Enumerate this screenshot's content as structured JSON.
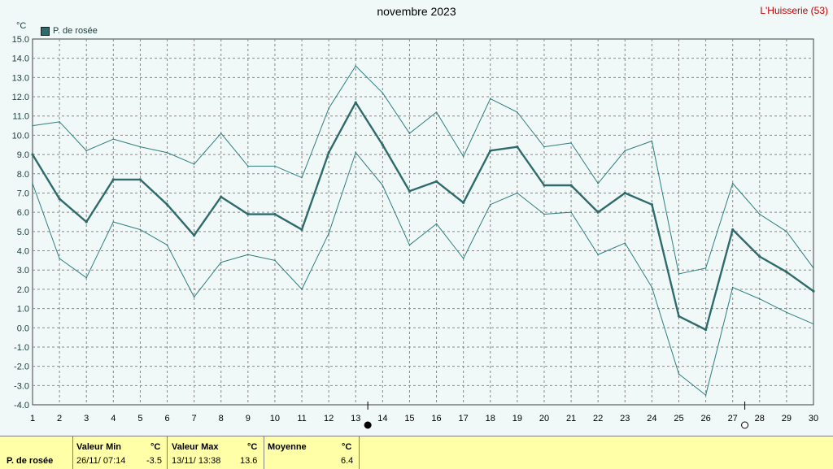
{
  "title": "novembre 2023",
  "station": "L'Huisserie (53)",
  "unit_label": "°C",
  "legend_label": "P. de rosée",
  "colors": {
    "main": "#2f6b6b",
    "envelope": "#2f7f7f",
    "grid": "#888888",
    "plot_bg": "#f0f8f8",
    "stats_bg": "#ffffa8",
    "station": "#c00000"
  },
  "chart_data": {
    "type": "line",
    "x": [
      1,
      2,
      3,
      4,
      5,
      6,
      7,
      8,
      9,
      10,
      11,
      12,
      13,
      14,
      15,
      16,
      17,
      18,
      19,
      20,
      21,
      22,
      23,
      24,
      25,
      26,
      27,
      28,
      29,
      30
    ],
    "xlim": [
      1,
      30
    ],
    "ylim": [
      -4,
      15
    ],
    "yticks": [
      "15.0",
      "14.0",
      "13.0",
      "12.0",
      "11.0",
      "10.0",
      "9.0",
      "8.0",
      "7.0",
      "6.0",
      "5.0",
      "4.0",
      "3.0",
      "2.0",
      "1.0",
      "0.0",
      "-1.0",
      "-2.0",
      "-3.0",
      "-4.0"
    ],
    "grid": true,
    "legend": "top-left",
    "series": [
      {
        "name": "P. de rosée",
        "role": "mean",
        "values": [
          9.0,
          6.7,
          5.5,
          7.7,
          7.7,
          6.4,
          4.8,
          6.8,
          5.9,
          5.9,
          5.1,
          9.1,
          11.7,
          9.5,
          7.1,
          7.6,
          6.5,
          9.2,
          9.4,
          7.4,
          7.4,
          6.0,
          7.0,
          6.4,
          0.6,
          -0.1,
          5.1,
          3.7,
          2.9,
          1.9
        ]
      },
      {
        "role": "max",
        "values": [
          10.5,
          10.7,
          9.2,
          9.8,
          9.4,
          9.1,
          8.5,
          10.1,
          8.4,
          8.4,
          7.8,
          11.4,
          13.6,
          12.2,
          10.1,
          11.2,
          8.9,
          11.9,
          11.2,
          9.4,
          9.6,
          7.5,
          9.2,
          9.7,
          2.8,
          3.1,
          7.5,
          5.9,
          5.0,
          3.1
        ]
      },
      {
        "role": "min",
        "values": [
          7.5,
          3.6,
          2.6,
          5.5,
          5.1,
          4.3,
          1.6,
          3.4,
          3.8,
          3.5,
          2.0,
          4.9,
          9.1,
          7.4,
          4.3,
          5.4,
          3.6,
          6.4,
          7.0,
          5.9,
          6.0,
          3.8,
          4.4,
          2.1,
          -2.4,
          -3.5,
          2.1,
          1.5,
          0.8,
          0.2
        ]
      }
    ],
    "markers": [
      {
        "day": 13,
        "type": "filled-circle"
      },
      {
        "day": 27,
        "type": "open-circle"
      }
    ]
  },
  "stats": {
    "row_label": "P. de rosée",
    "min_header": "Valeur Min",
    "min_unit": "°C",
    "min_time": "26/11/  07:14",
    "min_value": "-3.5",
    "max_header": "Valeur Max",
    "max_unit": "°C",
    "max_time": "13/11/  13:38",
    "max_value": "13.6",
    "avg_header": "Moyenne",
    "avg_unit": "°C",
    "avg_value": "6.4"
  }
}
